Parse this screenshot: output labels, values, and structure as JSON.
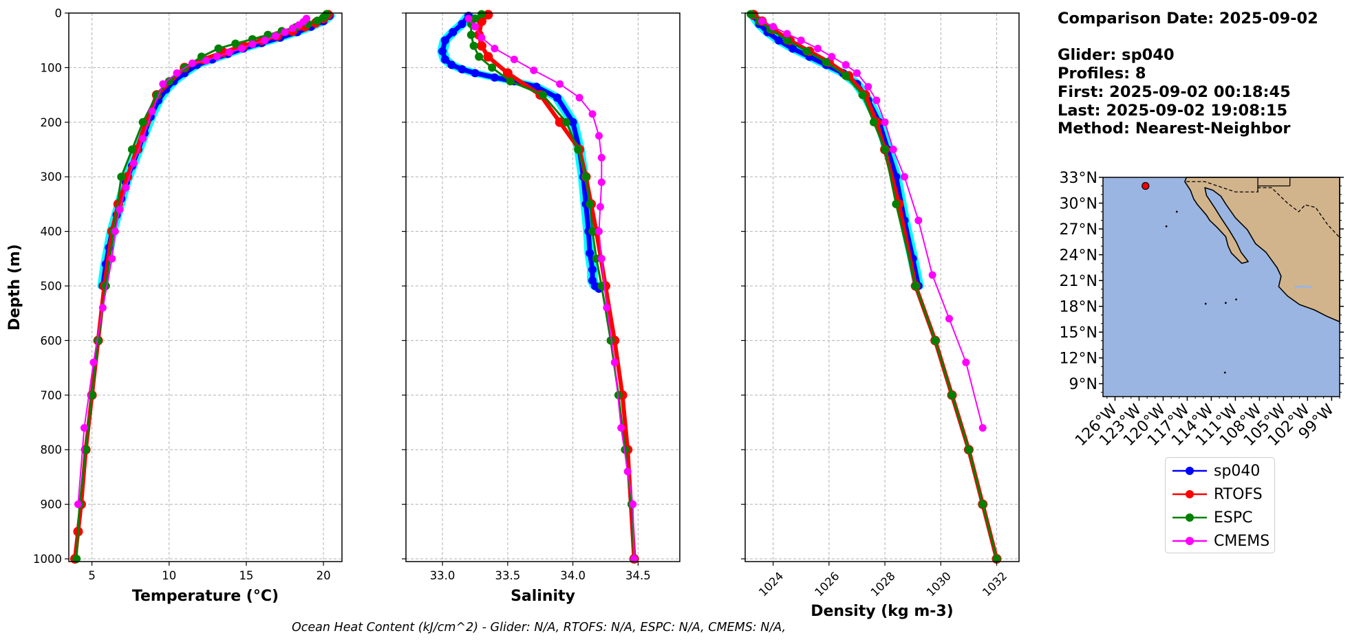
{
  "info": {
    "comparison_date": "Comparison Date: 2025-09-02",
    "glider": "Glider: sp040",
    "profiles": "Profiles: 8",
    "first": "First: 2025-09-02 00:18:45",
    "last": "Last: 2025-09-02 19:08:15",
    "method": "Method: Nearest-Neighbor"
  },
  "footer": "Ocean Heat Content (kJ/cm^2) - Glider: N/A,  RTOFS: N/A,  ESPC: N/A,  CMEMS: N/A,",
  "legend": [
    {
      "name": "sp040",
      "color": "#0000ff"
    },
    {
      "name": "RTOFS",
      "color": "#ff0000"
    },
    {
      "name": "ESPC",
      "color": "#008000"
    },
    {
      "name": "CMEMS",
      "color": "#ff00ff"
    }
  ],
  "colors": {
    "glider_spread": "#00ffff",
    "grid": "#b0b0b0",
    "ocean": "#9ab5e2",
    "land": "#d2b48c"
  },
  "chart_data": [
    {
      "type": "line",
      "xlabel": "Temperature (°C)",
      "ylabel": "Depth (m)",
      "xlim": [
        3.5,
        21.2
      ],
      "ylim": [
        1005,
        0
      ],
      "xticks": [
        5,
        10,
        15,
        20
      ],
      "yticks": [
        0,
        100,
        200,
        300,
        400,
        500,
        600,
        700,
        800,
        900,
        1000
      ],
      "grid": true,
      "series": [
        {
          "name": "sp040",
          "x": [
            20.4,
            20.0,
            19.2,
            18.3,
            17.2,
            16.0,
            14.8,
            13.8,
            12.8,
            11.8,
            11.0,
            10.3,
            9.8,
            9.3,
            8.8,
            8.4,
            8.0,
            7.6,
            7.2,
            6.9,
            6.6,
            6.3,
            6.1,
            5.9,
            5.7
          ],
          "y": [
            5,
            15,
            25,
            35,
            45,
            55,
            65,
            75,
            85,
            95,
            110,
            125,
            140,
            160,
            190,
            220,
            250,
            280,
            310,
            340,
            370,
            400,
            430,
            460,
            500
          ]
        },
        {
          "name": "RTOFS",
          "x": [
            20.3,
            20.0,
            19.5,
            18.8,
            18.0,
            17.0,
            16.0,
            14.8,
            13.5,
            12.2,
            11.0,
            9.2,
            8.5,
            7.9,
            7.3,
            6.7,
            6.3,
            5.8,
            5.4,
            5.0,
            4.6,
            4.3,
            4.1,
            3.9
          ],
          "y": [
            3,
            10,
            18,
            25,
            33,
            42,
            50,
            60,
            72,
            85,
            100,
            150,
            200,
            250,
            300,
            350,
            400,
            500,
            600,
            700,
            800,
            900,
            950,
            1000
          ]
        },
        {
          "name": "ESPC",
          "x": [
            20.2,
            20.0,
            19.6,
            19.0,
            18.2,
            17.3,
            16.4,
            15.4,
            14.3,
            13.2,
            12.1,
            11.0,
            10.0,
            9.2,
            8.3,
            7.6,
            6.9,
            6.4,
            5.9,
            5.4,
            5.0,
            4.6,
            4.2,
            4.0
          ],
          "y": [
            2,
            8,
            14,
            20,
            26,
            33,
            40,
            48,
            56,
            65,
            80,
            100,
            125,
            150,
            200,
            250,
            300,
            400,
            500,
            600,
            700,
            800,
            900,
            1000
          ]
        },
        {
          "name": "CMEMS",
          "x": [
            18.9,
            18.7,
            18.4,
            18.0,
            17.5,
            16.9,
            16.2,
            15.4,
            14.7,
            13.9,
            13.1,
            12.4,
            11.5,
            10.5,
            9.6,
            8.9,
            8.3,
            7.7,
            7.2,
            6.8,
            6.5,
            6.3,
            5.7,
            5.1,
            4.5,
            4.1
          ],
          "y": [
            10,
            16,
            22,
            28,
            35,
            42,
            50,
            57,
            65,
            72,
            80,
            87,
            92,
            110,
            130,
            180,
            230,
            275,
            320,
            360,
            400,
            450,
            540,
            640,
            760,
            900
          ]
        }
      ]
    },
    {
      "type": "line",
      "xlabel": "Salinity",
      "ylabel": "",
      "xlim": [
        32.72,
        34.82
      ],
      "ylim": [
        1005,
        0
      ],
      "xticks": [
        33.0,
        33.5,
        34.0,
        34.5
      ],
      "yticks": [
        0,
        100,
        200,
        300,
        400,
        500,
        600,
        700,
        800,
        900,
        1000
      ],
      "grid": true,
      "series": [
        {
          "name": "sp040",
          "x": [
            33.2,
            33.15,
            33.08,
            33.02,
            33.0,
            33.02,
            33.07,
            33.15,
            33.25,
            33.4,
            33.55,
            33.72,
            33.88,
            34.0,
            34.05,
            34.08,
            34.1,
            34.12,
            34.13,
            34.15,
            34.15,
            34.17,
            34.2
          ],
          "y": [
            5,
            20,
            35,
            50,
            70,
            85,
            95,
            103,
            110,
            118,
            125,
            135,
            155,
            200,
            250,
            300,
            350,
            400,
            440,
            470,
            490,
            500,
            505
          ]
        },
        {
          "name": "RTOFS",
          "x": [
            33.35,
            33.3,
            33.28,
            33.3,
            33.35,
            33.5,
            33.75,
            33.9,
            34.05,
            34.1,
            34.14,
            34.18,
            34.25,
            34.32,
            34.38,
            34.42,
            34.47
          ],
          "y": [
            3,
            15,
            40,
            60,
            80,
            110,
            150,
            200,
            250,
            300,
            350,
            400,
            500,
            600,
            700,
            800,
            1000
          ]
        },
        {
          "name": "ESPC",
          "x": [
            33.3,
            33.25,
            33.22,
            33.22,
            33.24,
            33.28,
            33.38,
            33.52,
            33.77,
            33.95,
            34.04,
            34.1,
            34.13,
            34.15,
            34.18,
            34.22,
            34.29,
            34.35,
            34.4,
            34.45,
            34.47
          ],
          "y": [
            2,
            10,
            20,
            40,
            60,
            80,
            100,
            125,
            150,
            200,
            250,
            300,
            350,
            400,
            450,
            500,
            600,
            700,
            800,
            900,
            1000
          ]
        },
        {
          "name": "CMEMS",
          "x": [
            33.2,
            33.25,
            33.3,
            33.4,
            33.55,
            33.7,
            33.9,
            34.05,
            34.15,
            34.2,
            34.22,
            34.22,
            34.21,
            34.2,
            34.22,
            34.26,
            34.32,
            34.37,
            34.42,
            34.46,
            34.47
          ],
          "y": [
            10,
            25,
            45,
            65,
            85,
            105,
            130,
            155,
            185,
            225,
            265,
            310,
            355,
            400,
            450,
            540,
            640,
            760,
            840,
            900,
            1000
          ]
        }
      ]
    },
    {
      "type": "line",
      "xlabel": "Density (kg m-3)",
      "ylabel": "",
      "xlim": [
        1023.0,
        1032.8
      ],
      "ylim": [
        1005,
        0
      ],
      "xticks": [
        1024,
        1026,
        1028,
        1030,
        1032
      ],
      "yticks": [
        0,
        100,
        200,
        300,
        400,
        500,
        600,
        700,
        800,
        900,
        1000
      ],
      "grid": true,
      "series": [
        {
          "name": "sp040",
          "x": [
            1023.3,
            1023.5,
            1023.8,
            1024.2,
            1024.7,
            1025.3,
            1025.9,
            1026.5,
            1027.0,
            1027.4,
            1027.8,
            1028.1,
            1028.4,
            1028.7,
            1029.0,
            1029.2
          ],
          "y": [
            5,
            20,
            35,
            50,
            65,
            80,
            95,
            110,
            130,
            160,
            200,
            250,
            300,
            380,
            450,
            500
          ]
        },
        {
          "name": "RTOFS",
          "x": [
            1023.3,
            1023.6,
            1024.0,
            1024.6,
            1025.3,
            1026.0,
            1026.7,
            1027.3,
            1027.7,
            1028.0,
            1028.5,
            1029.1,
            1029.8,
            1030.4,
            1031.0,
            1031.5,
            1032.0
          ],
          "y": [
            3,
            15,
            30,
            50,
            70,
            90,
            115,
            150,
            200,
            250,
            350,
            500,
            600,
            700,
            800,
            900,
            1000
          ]
        },
        {
          "name": "ESPC",
          "x": [
            1023.2,
            1023.5,
            1023.9,
            1024.5,
            1025.2,
            1025.9,
            1026.6,
            1027.2,
            1027.6,
            1028.0,
            1028.4,
            1029.1,
            1029.8,
            1030.4,
            1031.0,
            1031.5,
            1032.0
          ],
          "y": [
            2,
            15,
            30,
            50,
            70,
            90,
            115,
            150,
            200,
            250,
            350,
            500,
            600,
            700,
            800,
            900,
            1000
          ]
        },
        {
          "name": "CMEMS",
          "x": [
            1023.6,
            1024.0,
            1024.5,
            1025.0,
            1025.6,
            1026.1,
            1026.6,
            1027.0,
            1027.4,
            1027.7,
            1028.0,
            1028.3,
            1028.7,
            1029.2,
            1029.7,
            1030.3,
            1030.9,
            1031.5
          ],
          "y": [
            15,
            25,
            38,
            50,
            65,
            80,
            95,
            110,
            135,
            160,
            200,
            250,
            300,
            380,
            480,
            560,
            640,
            760
          ]
        }
      ]
    },
    {
      "type": "map",
      "lat_ticks": [
        "33°N",
        "30°N",
        "27°N",
        "24°N",
        "21°N",
        "18°N",
        "15°N",
        "12°N",
        "9°N"
      ],
      "lon_ticks": [
        "126°W",
        "123°W",
        "120°W",
        "117°W",
        "114°W",
        "111°W",
        "108°W",
        "105°W",
        "102°W",
        "99°W"
      ],
      "extent": {
        "lon": [
          -127.5,
          -98.0
        ],
        "lat": [
          7.5,
          33.0
        ]
      },
      "glider_location": {
        "lon": -122.2,
        "lat": 32.0
      }
    }
  ]
}
